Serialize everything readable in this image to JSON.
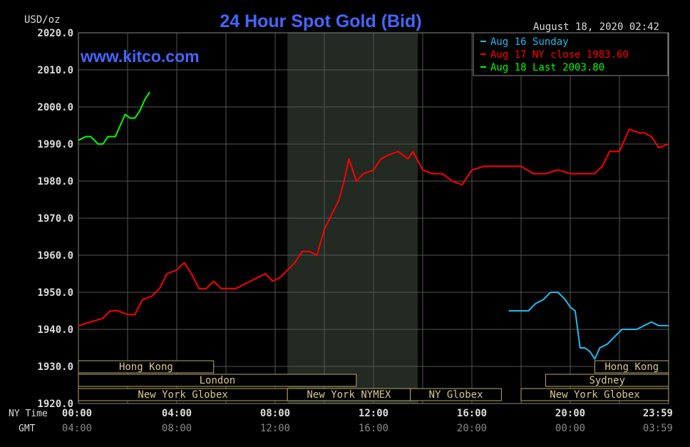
{
  "header": {
    "unit": "USD/oz",
    "title": "24 Hour Spot Gold (Bid)",
    "datetime": "August 18, 2020 02:42",
    "watermark": "www.kitco.com"
  },
  "legend": [
    {
      "label": "Aug 16 Sunday",
      "color": "#22bbee"
    },
    {
      "label": "Aug 17 NY close 1983.60",
      "color": "#ff0000"
    },
    {
      "label": "Aug 18 Last 2003.80",
      "color": "#00ff00"
    }
  ],
  "axis_labels": {
    "ny_time": "NY Time",
    "gmt": "GMT"
  },
  "markets": [
    {
      "name": "Hong Kong",
      "start_hour": 0,
      "end_hour": 5.5,
      "row": 1
    },
    {
      "name": "London",
      "start_hour": 0,
      "end_hour": 11.3,
      "row": 2
    },
    {
      "name": "New York Globex",
      "start_hour": 0,
      "end_hour": 8.5,
      "row": 3
    },
    {
      "name": "New York NYMEX",
      "start_hour": 8.5,
      "end_hour": 13.5,
      "row": 3
    },
    {
      "name": "NY Globex",
      "start_hour": 13.5,
      "end_hour": 17.2,
      "row": 3
    },
    {
      "name": "Hong Kong",
      "start_hour": 21.0,
      "end_hour": 24.0,
      "row": 1
    },
    {
      "name": "Sydney",
      "start_hour": 19.0,
      "end_hour": 24.0,
      "row": 2
    },
    {
      "name": "New York Globex",
      "start_hour": 18.0,
      "end_hour": 24.0,
      "row": 3
    }
  ],
  "chart_data": {
    "type": "line",
    "title": "24 Hour Spot Gold (Bid)",
    "ylabel": "USD/oz",
    "xlabel": "NY Time",
    "ylim": [
      1920,
      2020
    ],
    "xlim": [
      0,
      24
    ],
    "grid": true,
    "shaded_range_hours": [
      8.5,
      13.8
    ],
    "y_ticks": [
      "2020.0",
      "2010.0",
      "2000.0",
      "1990.0",
      "1980.0",
      "1970.0",
      "1960.0",
      "1950.0",
      "1940.0",
      "1930.0",
      "1920.0"
    ],
    "x_ticks_ny": [
      "00:00",
      "04:00",
      "08:00",
      "12:00",
      "16:00",
      "20:00",
      "23:59"
    ],
    "x_ticks_gmt": [
      "04:00",
      "08:00",
      "12:00",
      "16:00",
      "20:00",
      "00:00",
      "03:59"
    ],
    "series": [
      {
        "name": "Aug 16 Sunday",
        "color": "#22bbee",
        "x": [
          17.5,
          18.0,
          18.3,
          18.6,
          18.9,
          19.2,
          19.5,
          19.8,
          20.0,
          20.2,
          20.4,
          20.6,
          20.8,
          21.0,
          21.2,
          21.5,
          21.8,
          22.1,
          22.4,
          22.7,
          23.0,
          23.3,
          23.6,
          23.99
        ],
        "y": [
          1945,
          1945,
          1945,
          1947,
          1948,
          1950,
          1950,
          1948,
          1946,
          1945,
          1935,
          1935,
          1934,
          1932,
          1935,
          1936,
          1938,
          1940,
          1940,
          1940,
          1941,
          1942,
          1941,
          1941
        ]
      },
      {
        "name": "Aug 17 NY close 1983.60",
        "color": "#ff0000",
        "x": [
          0.0,
          0.5,
          1.0,
          1.3,
          1.6,
          2.0,
          2.3,
          2.6,
          3.0,
          3.3,
          3.6,
          4.0,
          4.3,
          4.6,
          4.9,
          5.2,
          5.5,
          5.8,
          6.1,
          6.4,
          6.7,
          7.0,
          7.3,
          7.6,
          7.9,
          8.2,
          8.5,
          8.8,
          9.1,
          9.4,
          9.7,
          10.0,
          10.3,
          10.6,
          10.8,
          11.0,
          11.3,
          11.6,
          12.0,
          12.3,
          12.6,
          13.0,
          13.2,
          13.4,
          13.6,
          14.0,
          14.4,
          14.8,
          15.2,
          15.6,
          16.0,
          16.5,
          17.0,
          17.5,
          18.0,
          18.5,
          19.0,
          19.5,
          20.0,
          20.5,
          21.0,
          21.3,
          21.6,
          22.0,
          22.4,
          22.8,
          23.0,
          23.3,
          23.6,
          23.99
        ],
        "y": [
          1941,
          1942,
          1943,
          1945,
          1945,
          1944,
          1944,
          1948,
          1949,
          1951,
          1955,
          1956,
          1958,
          1955,
          1951,
          1951,
          1953,
          1951,
          1951,
          1951,
          1952,
          1953,
          1954,
          1955,
          1953,
          1954,
          1956,
          1958,
          1961,
          1961,
          1960,
          1967,
          1971,
          1975,
          1980,
          1986,
          1980,
          1982,
          1983,
          1986,
          1987,
          1988,
          1987,
          1986,
          1988,
          1983,
          1982,
          1982,
          1980,
          1979,
          1983,
          1984,
          1984,
          1984,
          1984,
          1982,
          1982,
          1983,
          1982,
          1982,
          1982,
          1984,
          1988,
          1988,
          1994,
          1993,
          1993,
          1992,
          1989,
          1990
        ]
      },
      {
        "name": "Aug 18 Last 2003.80",
        "color": "#00ff00",
        "x": [
          0.0,
          0.3,
          0.5,
          0.8,
          1.0,
          1.2,
          1.5,
          1.7,
          1.9,
          2.1,
          2.3,
          2.5,
          2.7,
          2.9
        ],
        "y": [
          1991,
          1992,
          1992,
          1990,
          1990,
          1992,
          1992,
          1995,
          1998,
          1997,
          1997,
          1999,
          2002,
          2004
        ]
      }
    ]
  }
}
